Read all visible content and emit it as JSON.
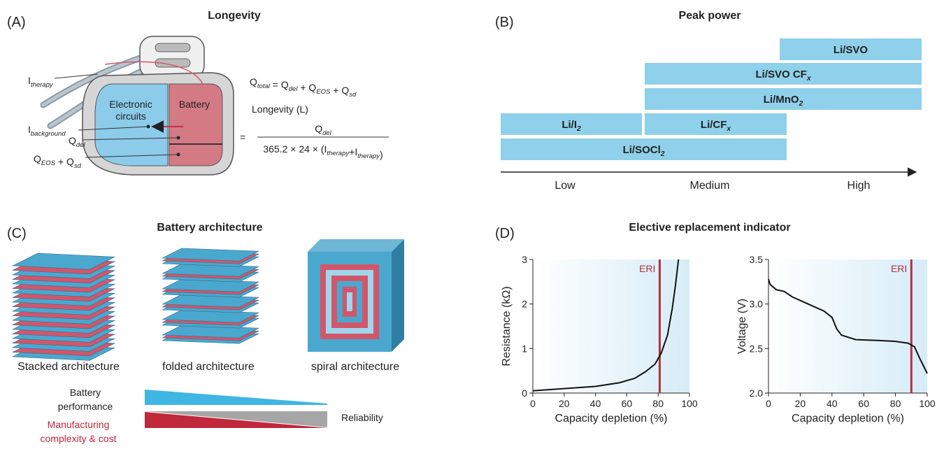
{
  "panels": {
    "a": {
      "label": "(A)",
      "title": "Longevity",
      "callouts": [
        [
          {
            "t": "I",
            "sub": "therapy"
          }
        ],
        [
          {
            "t": "I",
            "sub": "background"
          }
        ],
        [
          {
            "t": "Q",
            "sub": "del"
          }
        ],
        [
          {
            "t": "Q",
            "sub": "EOS"
          },
          {
            "t": " + Q",
            "sub": "sd"
          }
        ]
      ],
      "regions": [
        [
          "Electronic",
          "circuits"
        ],
        [
          "Battery"
        ]
      ],
      "equation_total": [
        {
          "t": "Q",
          "sub": "total"
        },
        {
          "t": " = Q",
          "sub": "del"
        },
        {
          "t": " + Q",
          "sub": "EOS"
        },
        {
          "t": " + Q",
          "sub": "sd"
        }
      ],
      "longevity": "Longevity (L)",
      "equals": "=",
      "numerator": [
        {
          "t": "Q",
          "sub": "del"
        }
      ],
      "denominator": [
        {
          "t": "365.2 × 24 × (I",
          "sub": "therapy"
        },
        {
          "t": "+I",
          "sub": "therapy"
        },
        {
          "t": ")"
        }
      ]
    },
    "b": {
      "label": "(B)",
      "title": "Peak power",
      "bars": [
        [
          {
            "t": "Li/SVO"
          }
        ],
        [
          {
            "t": "Li/SVO CF",
            "sub": "x"
          }
        ],
        [
          {
            "t": "Li/MnO",
            "sub": "2"
          }
        ],
        [
          {
            "t": "Li/I",
            "sub": "2"
          }
        ],
        [
          {
            "t": "Li/CF",
            "sub": "x"
          }
        ],
        [
          {
            "t": "Li/SOCl",
            "sub": "2"
          }
        ]
      ],
      "axis_labels": [
        "Low",
        "Medium",
        "High"
      ]
    },
    "c": {
      "label": "(C)",
      "title": "Battery architecture",
      "architectures": [
        "Stacked architecture",
        "folded architecture",
        "spiral architecture"
      ],
      "performance": [
        "Battery",
        "performance"
      ],
      "complexity": [
        "Manufacturing",
        "complexity & cost"
      ],
      "reliability": "Reliability"
    },
    "d": {
      "label": "(D)",
      "title": "Elective replacement indicator"
    }
  },
  "chart_data": [
    {
      "type": "line",
      "y_label": "Resistance (kΩ)",
      "x_label": "Capacity depletion (%)",
      "x": [
        0,
        20,
        40,
        55,
        65,
        72,
        78,
        82,
        86,
        89,
        91,
        93
      ],
      "values": [
        0.05,
        0.1,
        0.15,
        0.23,
        0.33,
        0.48,
        0.65,
        0.9,
        1.3,
        1.9,
        2.4,
        3.0
      ],
      "color": "#111111",
      "xlim": [
        0,
        100
      ],
      "xticks": [
        0,
        20,
        40,
        60,
        80,
        100
      ],
      "ylim": [
        0,
        3
      ],
      "yticks": [
        0,
        1,
        2,
        3
      ],
      "eri": {
        "text": "ERI",
        "x": 81,
        "color": "#b5303f"
      }
    },
    {
      "type": "line",
      "y_label": "Voltage (V)",
      "x_label": "Capacity depletion (%)",
      "x": [
        0,
        1,
        5,
        10,
        15,
        25,
        35,
        40,
        43,
        46,
        55,
        70,
        80,
        88,
        92,
        95,
        100
      ],
      "values": [
        3.28,
        3.22,
        3.16,
        3.14,
        3.08,
        3.0,
        2.92,
        2.85,
        2.72,
        2.65,
        2.6,
        2.59,
        2.58,
        2.56,
        2.52,
        2.4,
        2.22
      ],
      "color": "#111111",
      "xlim": [
        0,
        100
      ],
      "xticks": [
        0,
        20,
        40,
        60,
        80,
        100
      ],
      "ylim": [
        2.0,
        3.5
      ],
      "yticks": [
        {
          "value": 2.0,
          "label": "2.0"
        },
        2.5,
        {
          "value": 3.0,
          "label": "3.0"
        },
        3.5
      ],
      "eri": {
        "text": "ERI",
        "x": 90,
        "color": "#b5303f"
      }
    }
  ]
}
